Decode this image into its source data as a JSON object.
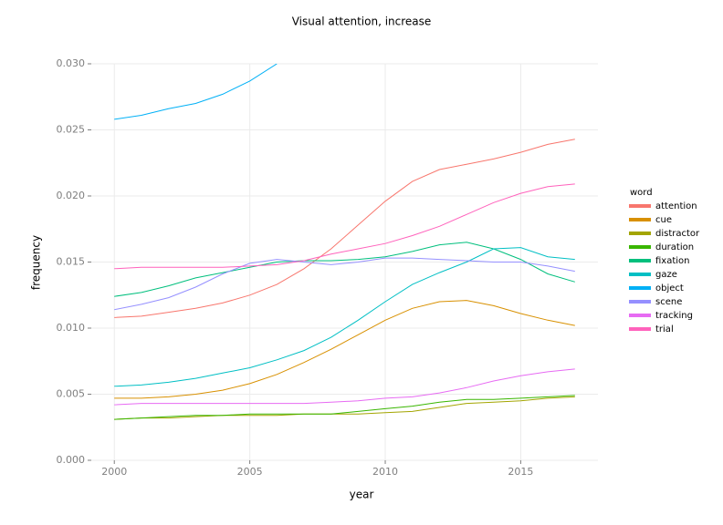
{
  "chart_data": {
    "type": "line",
    "title": "Visual attention, increase",
    "x_label": "year",
    "y_label": "frequency",
    "legend_title": "word",
    "legend": "right",
    "grid": true,
    "x": [
      2000,
      2001,
      2002,
      2003,
      2004,
      2005,
      2006,
      2007,
      2008,
      2009,
      2010,
      2011,
      2012,
      2013,
      2014,
      2015,
      2016,
      2017
    ],
    "xlim": [
      1999.15,
      2017.85
    ],
    "xticks": [
      2000,
      2005,
      2010,
      2015
    ],
    "ylim": [
      0,
      0.03
    ],
    "yticks": [
      {
        "value": 0,
        "label": "0.000"
      },
      {
        "value": 0.005,
        "label": "0.005"
      },
      {
        "value": 0.01,
        "label": "0.010"
      },
      {
        "value": 0.015,
        "label": "0.015"
      },
      {
        "value": 0.02,
        "label": "0.020"
      },
      {
        "value": 0.025,
        "label": "0.025"
      },
      {
        "value": 0.03,
        "label": "0.030"
      }
    ],
    "series": [
      {
        "name": "attention",
        "color": "#F8766D",
        "values": [
          0.0108,
          0.0109,
          0.0112,
          0.0115,
          0.0119,
          0.0125,
          0.0133,
          0.0145,
          0.016,
          0.0178,
          0.0196,
          0.0211,
          0.022,
          0.0224,
          0.0228,
          0.0233,
          0.0239,
          0.0243
        ]
      },
      {
        "name": "cue",
        "color": "#D89000",
        "values": [
          0.0047,
          0.0047,
          0.0048,
          0.005,
          0.0053,
          0.0058,
          0.0065,
          0.0074,
          0.0084,
          0.0095,
          0.0106,
          0.0115,
          0.012,
          0.0121,
          0.0117,
          0.0111,
          0.0106,
          0.0102
        ]
      },
      {
        "name": "distractor",
        "color": "#A3A500",
        "values": [
          0.0031,
          0.0032,
          0.0032,
          0.0033,
          0.0034,
          0.0034,
          0.0034,
          0.0035,
          0.0035,
          0.0035,
          0.0036,
          0.0037,
          0.004,
          0.0043,
          0.0044,
          0.0045,
          0.0047,
          0.0048
        ]
      },
      {
        "name": "duration",
        "color": "#39B600",
        "values": [
          0.0031,
          0.0032,
          0.0033,
          0.0034,
          0.0034,
          0.0035,
          0.0035,
          0.0035,
          0.0035,
          0.0037,
          0.0039,
          0.0041,
          0.0044,
          0.0046,
          0.0046,
          0.0047,
          0.0048,
          0.0049
        ]
      },
      {
        "name": "fixation",
        "color": "#00BF7D",
        "values": [
          0.0124,
          0.0127,
          0.0132,
          0.0138,
          0.0142,
          0.0146,
          0.015,
          0.0151,
          0.0151,
          0.0152,
          0.0154,
          0.0158,
          0.0163,
          0.0165,
          0.016,
          0.0152,
          0.0141,
          0.0135
        ]
      },
      {
        "name": "gaze",
        "color": "#00BFC4",
        "values": [
          0.0056,
          0.0057,
          0.0059,
          0.0062,
          0.0066,
          0.007,
          0.0076,
          0.0083,
          0.0093,
          0.0106,
          0.012,
          0.0133,
          0.0142,
          0.015,
          0.016,
          0.0161,
          0.0154,
          0.0152
        ]
      },
      {
        "name": "object",
        "color": "#00B0F6",
        "values": [
          0.0258,
          0.0261,
          0.0266,
          0.027,
          0.0277,
          0.0287,
          0.03,
          null,
          null,
          null,
          null,
          null,
          null,
          null,
          null,
          null,
          null,
          null
        ]
      },
      {
        "name": "scene",
        "color": "#9590FF",
        "values": [
          0.0114,
          0.0118,
          0.0123,
          0.0131,
          0.0141,
          0.0149,
          0.0152,
          0.015,
          0.0148,
          0.015,
          0.0153,
          0.0153,
          0.0152,
          0.0151,
          0.015,
          0.015,
          0.0147,
          0.0143
        ]
      },
      {
        "name": "tracking",
        "color": "#E76BF3",
        "values": [
          0.0042,
          0.0043,
          0.0043,
          0.0043,
          0.0043,
          0.0043,
          0.0043,
          0.0043,
          0.0044,
          0.0045,
          0.0047,
          0.0048,
          0.0051,
          0.0055,
          0.006,
          0.0064,
          0.0067,
          0.0069
        ]
      },
      {
        "name": "trial",
        "color": "#FF62BC",
        "values": [
          0.0145,
          0.0146,
          0.0146,
          0.0146,
          0.0146,
          0.0147,
          0.0148,
          0.0151,
          0.0156,
          0.016,
          0.0164,
          0.017,
          0.0177,
          0.0186,
          0.0195,
          0.0202,
          0.0207,
          0.0209
        ]
      }
    ]
  }
}
